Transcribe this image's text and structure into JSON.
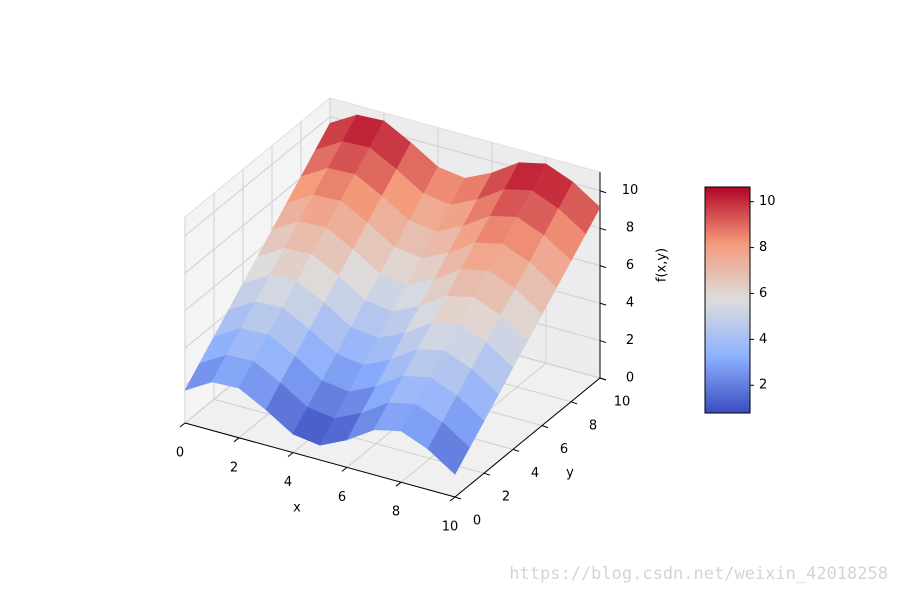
{
  "chart_data": {
    "type": "surface",
    "x": [
      0,
      1,
      2,
      3,
      4,
      5,
      6,
      7,
      8,
      9,
      10
    ],
    "y": [
      0,
      1,
      2,
      3,
      4,
      5,
      6,
      7,
      8,
      9,
      10
    ],
    "z": [
      [
        1.75,
        2.59,
        2.66,
        1.89,
        0.99,
        0.79,
        1.47,
        2.41,
        2.74,
        2.16,
        1.21
      ],
      [
        2.54,
        3.38,
        3.45,
        2.68,
        1.78,
        1.58,
        2.26,
        3.2,
        3.53,
        2.95,
        2.0
      ],
      [
        3.33,
        4.17,
        4.24,
        3.47,
        2.57,
        2.37,
        3.05,
        3.99,
        4.32,
        3.74,
        2.79
      ],
      [
        4.12,
        4.96,
        5.03,
        4.26,
        3.36,
        3.16,
        3.84,
        4.78,
        5.11,
        4.53,
        3.58
      ],
      [
        4.91,
        5.75,
        5.82,
        5.05,
        4.15,
        3.95,
        4.63,
        5.57,
        5.9,
        5.32,
        4.37
      ],
      [
        5.7,
        6.54,
        6.61,
        5.84,
        4.94,
        4.74,
        5.42,
        6.36,
        6.69,
        6.11,
        5.16
      ],
      [
        6.49,
        7.33,
        7.4,
        6.63,
        5.73,
        5.53,
        6.21,
        7.15,
        7.48,
        6.9,
        5.95
      ],
      [
        7.28,
        8.12,
        8.19,
        7.42,
        6.52,
        6.32,
        7.0,
        7.94,
        8.27,
        7.69,
        6.74
      ],
      [
        8.07,
        8.91,
        8.98,
        8.21,
        7.31,
        7.11,
        7.79,
        8.73,
        9.06,
        8.48,
        7.53
      ],
      [
        8.86,
        9.7,
        9.77,
        9.0,
        8.1,
        7.9,
        8.58,
        9.52,
        9.85,
        9.27,
        8.32
      ],
      [
        9.65,
        10.49,
        10.56,
        9.79,
        8.89,
        8.69,
        9.37,
        10.31,
        10.64,
        10.06,
        9.11
      ]
    ],
    "xlabel": "x",
    "ylabel": "y",
    "zlabel": "f(x,y)",
    "xlim": [
      0,
      10
    ],
    "ylim": [
      0,
      10
    ],
    "zlim": [
      0,
      11
    ],
    "xticks": [
      0,
      2,
      4,
      6,
      8,
      10
    ],
    "yticks": [
      0,
      2,
      4,
      6,
      8,
      10
    ],
    "zticks": [
      0,
      2,
      4,
      6,
      8,
      10
    ],
    "grid": true,
    "colormap": "coolwarm",
    "colorbar": {
      "clim": [
        0.79,
        10.64
      ],
      "ticks": [
        2,
        4,
        6,
        8,
        10
      ]
    },
    "watermark": "https://blog.csdn.net/weixin_42018258"
  }
}
